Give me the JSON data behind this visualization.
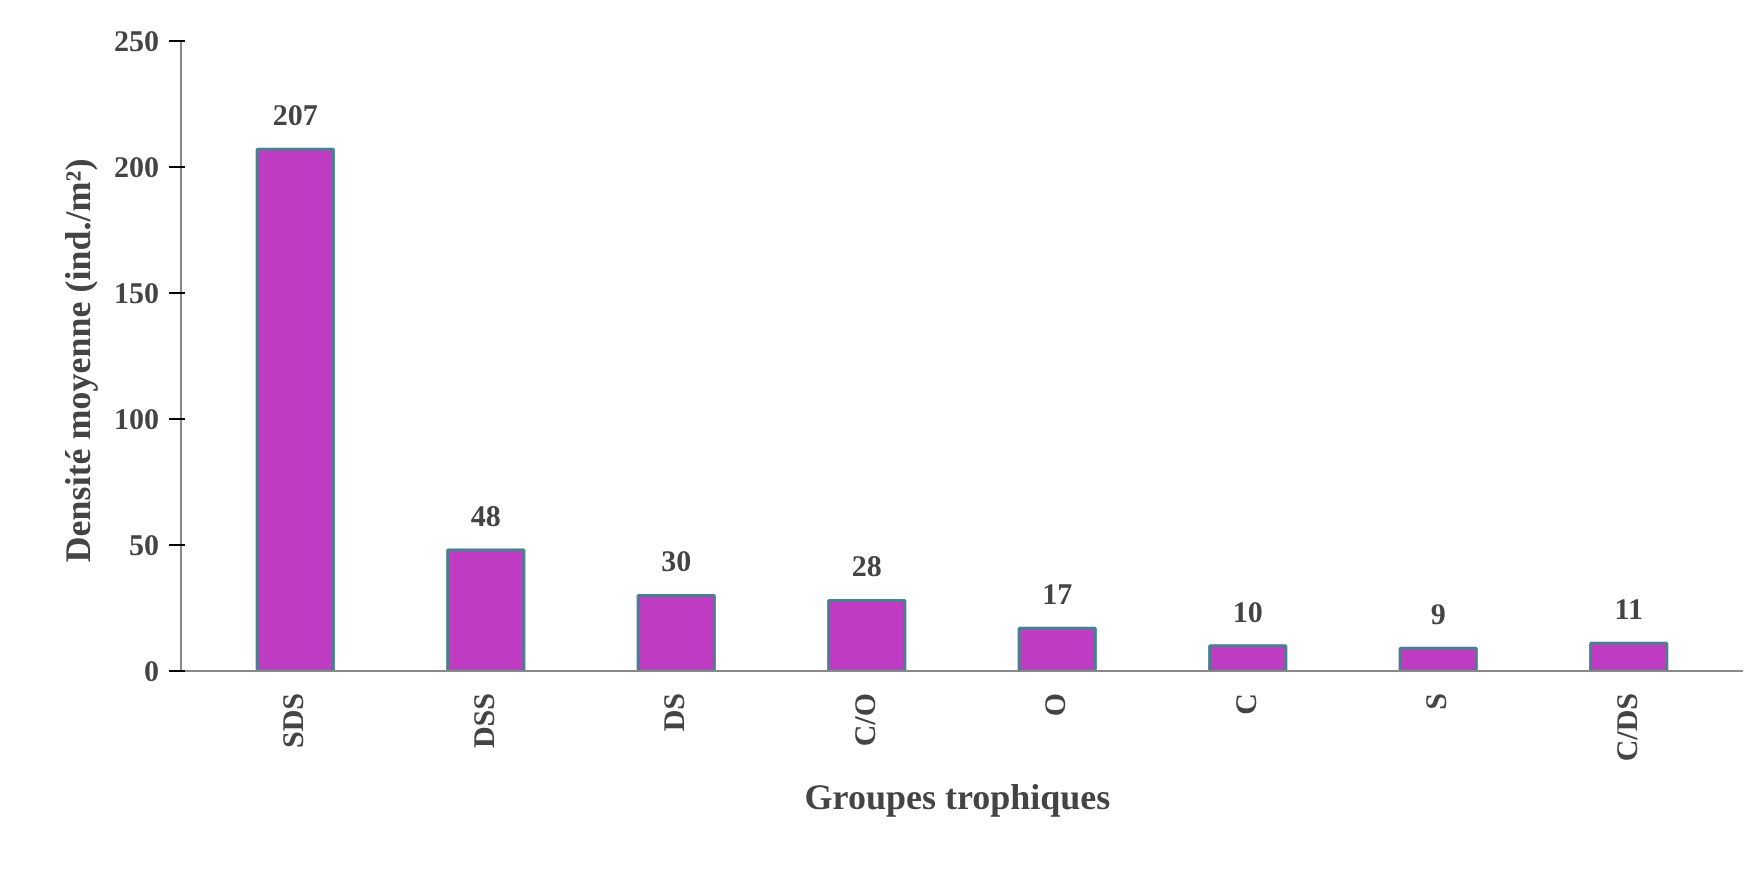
{
  "chart_data": {
    "type": "bar",
    "xlabel": "Groupes  trophiques",
    "ylabel": "Densité moyenne  (ind./m²)",
    "categories": [
      "SDS",
      "DSS",
      "DS",
      "C/O",
      "O",
      "C",
      "S",
      "C/DS"
    ],
    "values": [
      207,
      48,
      30,
      28,
      17,
      10,
      9,
      11
    ],
    "color": "#c03cc3",
    "ylim": [
      0,
      250
    ],
    "yticks": [
      0,
      50,
      100,
      150,
      200,
      250
    ],
    "grid": false,
    "data_labels": true
  }
}
